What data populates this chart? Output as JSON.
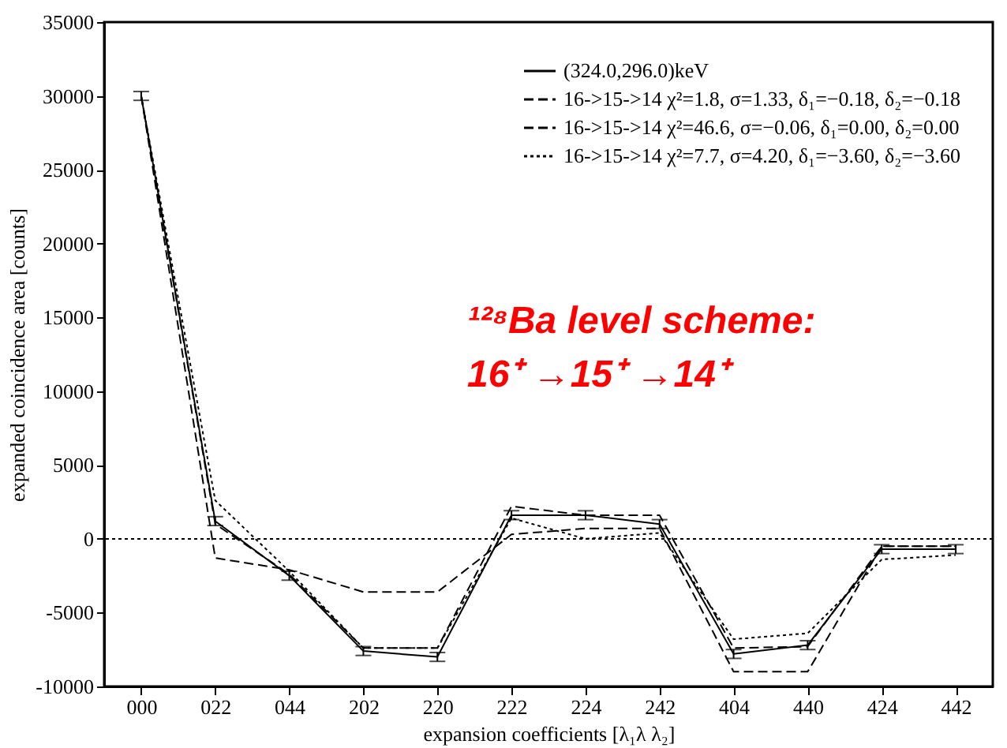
{
  "chart_data": {
    "type": "line",
    "xlabel": "expansion coefficients [λ₁λ λ₂]",
    "ylabel": "expanded coincidence area [counts]",
    "categories": [
      "000",
      "022",
      "044",
      "202",
      "220",
      "222",
      "224",
      "242",
      "404",
      "440",
      "424",
      "442"
    ],
    "series": [
      {
        "name": "(324.0,296.0)keV",
        "color": "#000000",
        "line_style": "solid",
        "values": [
          30000,
          1200,
          -2500,
          -7600,
          -8000,
          1600,
          1600,
          1000,
          -7800,
          -7200,
          -700,
          -700
        ],
        "errors": [
          300,
          300,
          300,
          300,
          300,
          300,
          300,
          300,
          300,
          300,
          300,
          300
        ]
      },
      {
        "name": "16->15->14 χ²=1.8, σ=1.33, δ₁=−0.18, δ₂=−0.18",
        "color": "#000000",
        "line_style": "dashed",
        "values": [
          30000,
          1000,
          -2400,
          -7400,
          -7400,
          2200,
          1600,
          1600,
          -7400,
          -7300,
          -500,
          -500
        ]
      },
      {
        "name": "16->15->14 χ²=46.6, σ=−0.06, δ₁=0.00, δ₂=0.00",
        "color": "#000000",
        "line_style": "dashed",
        "values": [
          30000,
          -1300,
          -2100,
          -3600,
          -3600,
          300,
          700,
          700,
          -9000,
          -9000,
          -500,
          -500
        ]
      },
      {
        "name": "16->15->14 χ²=7.7, σ=4.20, δ₁=−3.60, δ₂=−3.60",
        "color": "#000000",
        "line_style": "dotted",
        "values": [
          30000,
          2600,
          -2200,
          -7400,
          -7400,
          1400,
          0,
          400,
          -6800,
          -6400,
          -1400,
          -1100
        ]
      }
    ],
    "ylim": [
      -10000,
      35000
    ],
    "yticks": [
      -10000,
      -5000,
      0,
      5000,
      10000,
      15000,
      20000,
      25000,
      30000,
      35000
    ],
    "ref_lines": [
      {
        "axis": "y",
        "value": 0,
        "line_style": "dotted"
      }
    ],
    "annotations": [
      "¹²⁸Ba level scheme:",
      "16⁺ →15⁺ →14⁺"
    ],
    "legend": "top right",
    "marker": "none",
    "grid": false
  }
}
